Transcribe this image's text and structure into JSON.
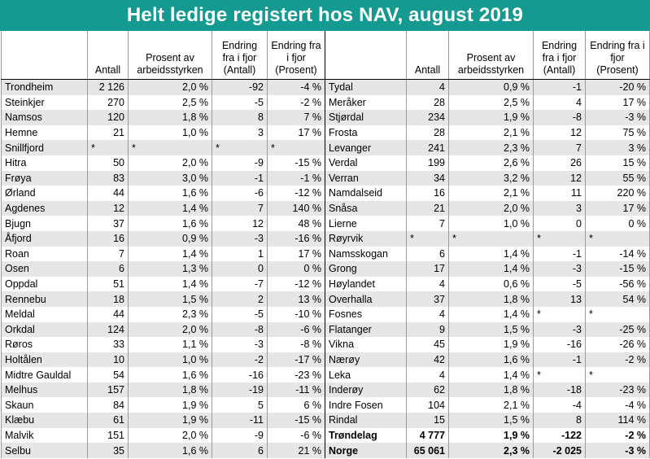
{
  "title": "Helt ledige registert hos NAV, august 2019",
  "headers": {
    "antall": "Antall",
    "prosent": "Prosent av arbeidsstyrken",
    "endring_antall": "Endring fra i fjor (Antall)",
    "endring_prosent": "Endring fra i fjor (Prosent)"
  },
  "rows": [
    {
      "left": [
        "Trondheim",
        "2 126",
        "2,0 %",
        "-92",
        "-4 %"
      ],
      "right": [
        "Tydal",
        "4",
        "0,9 %",
        "-1",
        "-20 %"
      ]
    },
    {
      "left": [
        "Steinkjer",
        "270",
        "2,5 %",
        "-5",
        "-2 %"
      ],
      "right": [
        "Meråker",
        "28",
        "2,5 %",
        "4",
        "17 %"
      ]
    },
    {
      "left": [
        "Namsos",
        "120",
        "1,8 %",
        "8",
        "7 %"
      ],
      "right": [
        "Stjørdal",
        "234",
        "1,9 %",
        "-8",
        "-3 %"
      ]
    },
    {
      "left": [
        "Hemne",
        "21",
        "1,0 %",
        "3",
        "17 %"
      ],
      "right": [
        "Frosta",
        "28",
        "2,1 %",
        "12",
        "75 %"
      ]
    },
    {
      "left": [
        "Snillfjord",
        "*",
        "*",
        "*",
        "*"
      ],
      "right": [
        "Levanger",
        "241",
        "2,3 %",
        "7",
        "3 %"
      ]
    },
    {
      "left": [
        "Hitra",
        "50",
        "2,0 %",
        "-9",
        "-15 %"
      ],
      "right": [
        "Verdal",
        "199",
        "2,6 %",
        "26",
        "15 %"
      ]
    },
    {
      "left": [
        "Frøya",
        "83",
        "3,0 %",
        "-1",
        "-1 %"
      ],
      "right": [
        "Verran",
        "34",
        "3,2 %",
        "12",
        "55 %"
      ]
    },
    {
      "left": [
        "Ørland",
        "44",
        "1,6 %",
        "-6",
        "-12 %"
      ],
      "right": [
        "Namdalseid",
        "16",
        "2,1 %",
        "11",
        "220 %"
      ]
    },
    {
      "left": [
        "Agdenes",
        "12",
        "1,4 %",
        "7",
        "140 %"
      ],
      "right": [
        "Snåsa",
        "21",
        "2,0 %",
        "3",
        "17 %"
      ]
    },
    {
      "left": [
        "Bjugn",
        "37",
        "1,6 %",
        "12",
        "48 %"
      ],
      "right": [
        "Lierne",
        "7",
        "1,0 %",
        "0",
        "0 %"
      ]
    },
    {
      "left": [
        "Åfjord",
        "16",
        "0,9 %",
        "-3",
        "-16 %"
      ],
      "right": [
        "Røyrvik",
        "*",
        "*",
        "*",
        "*"
      ]
    },
    {
      "left": [
        "Roan",
        "7",
        "1,4 %",
        "1",
        "17 %"
      ],
      "right": [
        "Namsskogan",
        "6",
        "1,4 %",
        "-1",
        "-14 %"
      ]
    },
    {
      "left": [
        "Osen",
        "6",
        "1,3 %",
        "0",
        "0 %"
      ],
      "right": [
        "Grong",
        "17",
        "1,4 %",
        "-3",
        "-15 %"
      ]
    },
    {
      "left": [
        "Oppdal",
        "51",
        "1,4 %",
        "-7",
        "-12 %"
      ],
      "right": [
        "Høylandet",
        "4",
        "0,6 %",
        "-5",
        "-56 %"
      ]
    },
    {
      "left": [
        "Rennebu",
        "18",
        "1,5 %",
        "2",
        "13 %"
      ],
      "right": [
        "Overhalla",
        "37",
        "1,8 %",
        "13",
        "54 %"
      ]
    },
    {
      "left": [
        "Meldal",
        "44",
        "2,3 %",
        "-5",
        "-10 %"
      ],
      "right": [
        "Fosnes",
        "4",
        "1,4 %",
        "*",
        "*"
      ]
    },
    {
      "left": [
        "Orkdal",
        "124",
        "2,0 %",
        "-8",
        "-6 %"
      ],
      "right": [
        "Flatanger",
        "9",
        "1,5 %",
        "-3",
        "-25 %"
      ]
    },
    {
      "left": [
        "Røros",
        "33",
        "1,1 %",
        "-3",
        "-8 %"
      ],
      "right": [
        "Vikna",
        "45",
        "1,9 %",
        "-16",
        "-26 %"
      ]
    },
    {
      "left": [
        "Holtålen",
        "10",
        "1,0 %",
        "-2",
        "-17 %"
      ],
      "right": [
        "Nærøy",
        "42",
        "1,6 %",
        "-1",
        "-2 %"
      ]
    },
    {
      "left": [
        "Midtre Gauldal",
        "54",
        "1,6 %",
        "-16",
        "-23 %"
      ],
      "right": [
        "Leka",
        "4",
        "1,4 %",
        "*",
        "*"
      ]
    },
    {
      "left": [
        "Melhus",
        "157",
        "1,8 %",
        "-19",
        "-11 %"
      ],
      "right": [
        "Inderøy",
        "62",
        "1,8 %",
        "-18",
        "-23 %"
      ]
    },
    {
      "left": [
        "Skaun",
        "84",
        "1,9 %",
        "5",
        "6 %"
      ],
      "right": [
        "Indre Fosen",
        "104",
        "2,1 %",
        "-4",
        "-4 %"
      ]
    },
    {
      "left": [
        "Klæbu",
        "61",
        "1,9 %",
        "-11",
        "-15 %"
      ],
      "right": [
        "Rindal",
        "15",
        "1,5 %",
        "8",
        "114 %"
      ]
    },
    {
      "left": [
        "Malvik",
        "151",
        "2,0 %",
        "-9",
        "-6 %"
      ],
      "right": [
        "Trøndelag",
        "4 777",
        "1,9 %",
        "-122",
        "-2 %"
      ],
      "right_bold": true
    },
    {
      "left": [
        "Selbu",
        "35",
        "1,6 %",
        "6",
        "21 %"
      ],
      "right": [
        "Norge",
        "65 061",
        "2,3 %",
        "-2 025",
        "-3 %"
      ],
      "right_bold": true
    }
  ]
}
